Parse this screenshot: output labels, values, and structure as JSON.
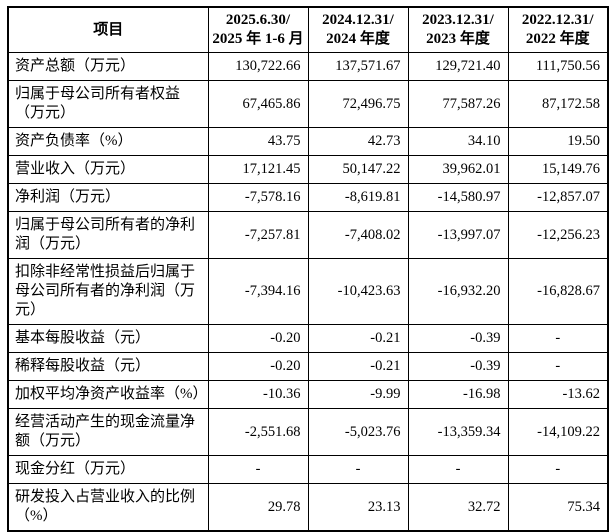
{
  "table": {
    "corner": "项目",
    "columns": [
      "2025.6.30/\n2025 年 1-6 月",
      "2024.12.31/\n2024 年度",
      "2023.12.31/\n2023 年度",
      "2022.12.31/\n2022 年度"
    ],
    "rows": [
      {
        "label": "资产总额（万元）",
        "values": [
          "130,722.66",
          "137,571.67",
          "129,721.40",
          "111,750.56"
        ]
      },
      {
        "label": "归属于母公司所有者权益（万元）",
        "values": [
          "67,465.86",
          "72,496.75",
          "77,587.26",
          "87,172.58"
        ]
      },
      {
        "label": "资产负债率（%）",
        "values": [
          "43.75",
          "42.73",
          "34.10",
          "19.50"
        ]
      },
      {
        "label": "营业收入（万元）",
        "values": [
          "17,121.45",
          "50,147.22",
          "39,962.01",
          "15,149.76"
        ]
      },
      {
        "label": "净利润（万元）",
        "values": [
          "-7,578.16",
          "-8,619.81",
          "-14,580.97",
          "-12,857.07"
        ]
      },
      {
        "label": "归属于母公司所有者的净利润（万元）",
        "values": [
          "-7,257.81",
          "-7,408.02",
          "-13,997.07",
          "-12,256.23"
        ]
      },
      {
        "label": "扣除非经常性损益后归属于母公司所有者的净利润（万元）",
        "values": [
          "-7,394.16",
          "-10,423.63",
          "-16,932.20",
          "-16,828.67"
        ]
      },
      {
        "label": "基本每股收益（元）",
        "values": [
          "-0.20",
          "-0.21",
          "-0.39",
          "-"
        ]
      },
      {
        "label": "稀释每股收益（元）",
        "values": [
          "-0.20",
          "-0.21",
          "-0.39",
          "-"
        ]
      },
      {
        "label": "加权平均净资产收益率（%）",
        "values": [
          "-10.36",
          "-9.99",
          "-16.98",
          "-13.62"
        ]
      },
      {
        "label": "经营活动产生的现金流量净额（万元）",
        "values": [
          "-2,551.68",
          "-5,023.76",
          "-13,359.34",
          "-14,109.22"
        ]
      },
      {
        "label": "现金分红（万元）",
        "values": [
          "-",
          "-",
          "-",
          "-"
        ]
      },
      {
        "label": "研发投入占营业收入的比例（%）",
        "values": [
          "29.78",
          "23.13",
          "32.72",
          "75.34"
        ]
      }
    ]
  }
}
